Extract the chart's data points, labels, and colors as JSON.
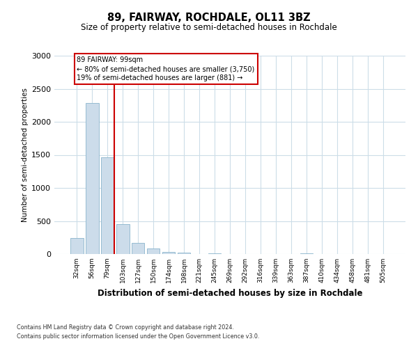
{
  "title": "89, FAIRWAY, ROCHDALE, OL11 3BZ",
  "subtitle": "Size of property relative to semi-detached houses in Rochdale",
  "xlabel": "Distribution of semi-detached houses by size in Rochdale",
  "ylabel": "Number of semi-detached properties",
  "bar_labels": [
    "32sqm",
    "56sqm",
    "79sqm",
    "103sqm",
    "127sqm",
    "150sqm",
    "174sqm",
    "198sqm",
    "221sqm",
    "245sqm",
    "269sqm",
    "292sqm",
    "316sqm",
    "339sqm",
    "363sqm",
    "387sqm",
    "410sqm",
    "434sqm",
    "458sqm",
    "481sqm",
    "505sqm"
  ],
  "bar_values": [
    245,
    2280,
    1460,
    455,
    165,
    85,
    35,
    20,
    0,
    15,
    0,
    0,
    0,
    0,
    0,
    15,
    0,
    0,
    0,
    0,
    0
  ],
  "bar_color": "#ccdcea",
  "bar_edge_color": "#8ab4cc",
  "vline_color": "#cc0000",
  "annotation_box_color": "#cc0000",
  "annotation_title": "89 FAIRWAY: 99sqm",
  "annotation_line1": "← 80% of semi-detached houses are smaller (3,750)",
  "annotation_line2": "19% of semi-detached houses are larger (881) →",
  "ylim": [
    0,
    3000
  ],
  "yticks": [
    0,
    500,
    1000,
    1500,
    2000,
    2500,
    3000
  ],
  "footer_line1": "Contains HM Land Registry data © Crown copyright and database right 2024.",
  "footer_line2": "Contains public sector information licensed under the Open Government Licence v3.0.",
  "bg_color": "#ffffff",
  "grid_color": "#ccdde8"
}
